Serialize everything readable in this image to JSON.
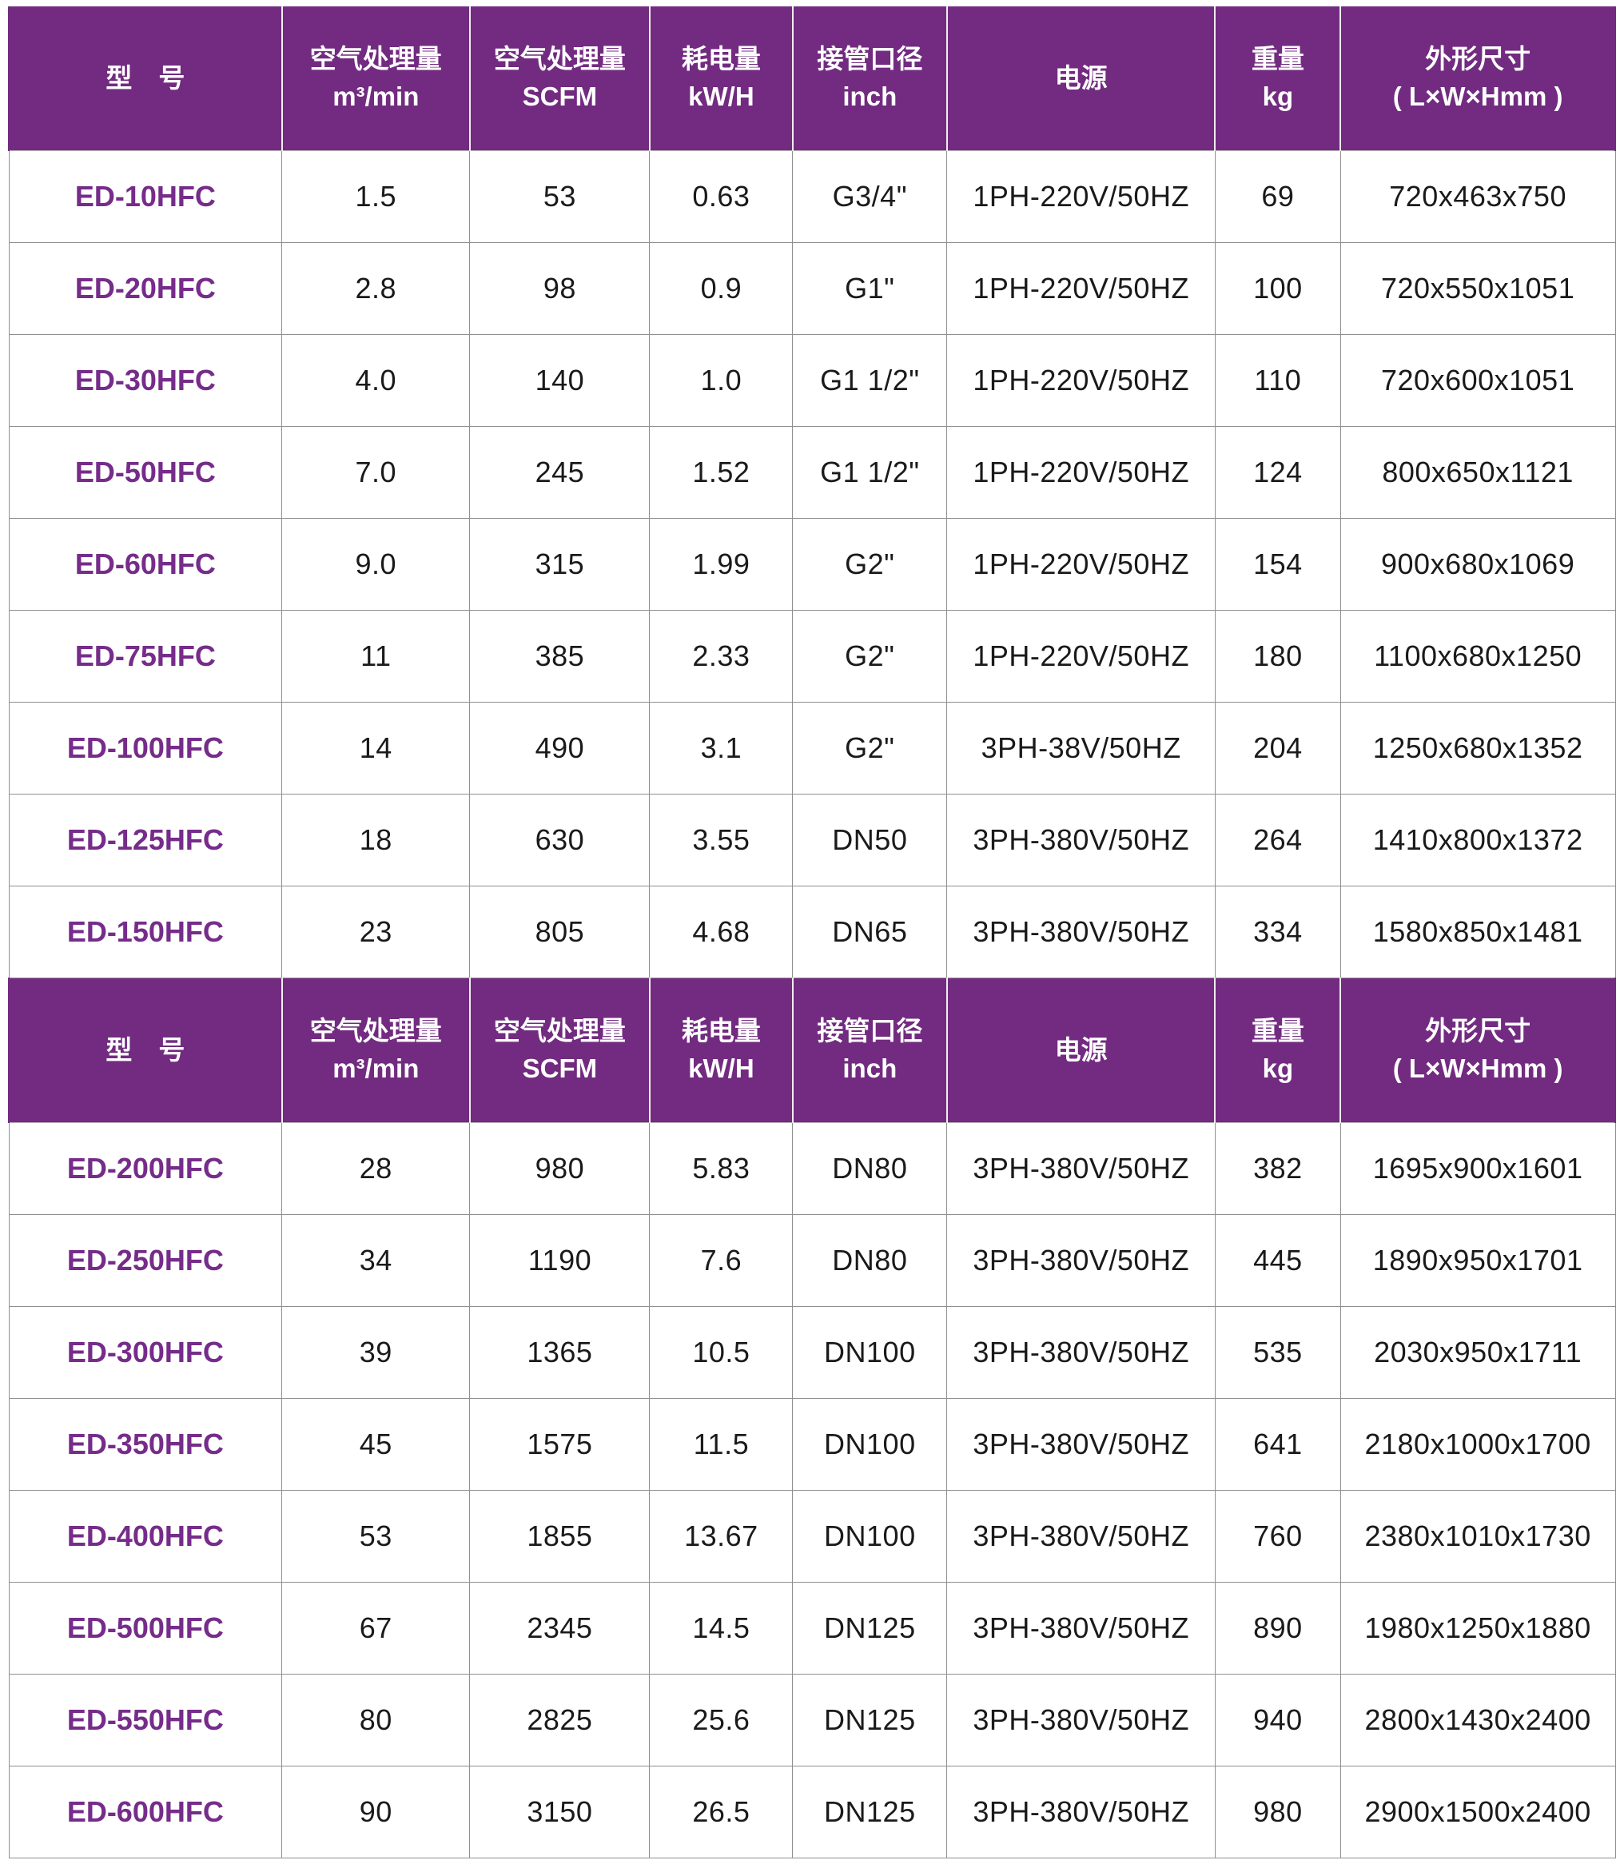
{
  "colors": {
    "header_bg": "#722B80",
    "header_text": "#ffffff",
    "model_text": "#762C8A",
    "body_text": "#1a1a1a",
    "grid_line": "#8f8f8f",
    "header_divider": "#efedee"
  },
  "table": {
    "columns": [
      {
        "name": "model",
        "width_pct": 17.0,
        "lines": [
          "型　号"
        ]
      },
      {
        "name": "air-flow-m3min",
        "width_pct": 11.7,
        "lines": [
          "空气处理量",
          "m³/min"
        ]
      },
      {
        "name": "air-flow-scfm",
        "width_pct": 11.2,
        "lines": [
          "空气处理量",
          "SCFM"
        ]
      },
      {
        "name": "power-consumption",
        "width_pct": 8.9,
        "lines": [
          "耗电量",
          "kW/H"
        ]
      },
      {
        "name": "pipe-diameter",
        "width_pct": 9.6,
        "lines": [
          "接管口径",
          "inch"
        ]
      },
      {
        "name": "power-supply",
        "width_pct": 16.7,
        "lines": [
          "电源"
        ]
      },
      {
        "name": "weight",
        "width_pct": 7.8,
        "lines": [
          "重量",
          "kg"
        ]
      },
      {
        "name": "dimensions",
        "width_pct": 17.1,
        "lines": [
          "外形尺寸",
          "( L×W×Hmm )"
        ]
      }
    ],
    "sections": [
      {
        "rows": [
          [
            "ED-10HFC",
            "1.5",
            "53",
            "0.63",
            "G3/4\"",
            "1PH-220V/50HZ",
            "69",
            "720x463x750"
          ],
          [
            "ED-20HFC",
            "2.8",
            "98",
            "0.9",
            "G1\"",
            "1PH-220V/50HZ",
            "100",
            "720x550x1051"
          ],
          [
            "ED-30HFC",
            "4.0",
            "140",
            "1.0",
            "G1 1/2\"",
            "1PH-220V/50HZ",
            "110",
            "720x600x1051"
          ],
          [
            "ED-50HFC",
            "7.0",
            "245",
            "1.52",
            "G1 1/2\"",
            "1PH-220V/50HZ",
            "124",
            "800x650x1121"
          ],
          [
            "ED-60HFC",
            "9.0",
            "315",
            "1.99",
            "G2\"",
            "1PH-220V/50HZ",
            "154",
            "900x680x1069"
          ],
          [
            "ED-75HFC",
            "11",
            "385",
            "2.33",
            "G2\"",
            "1PH-220V/50HZ",
            "180",
            "1100x680x1250"
          ],
          [
            "ED-100HFC",
            "14",
            "490",
            "3.1",
            "G2\"",
            "3PH-38V/50HZ",
            "204",
            "1250x680x1352"
          ],
          [
            "ED-125HFC",
            "18",
            "630",
            "3.55",
            "DN50",
            "3PH-380V/50HZ",
            "264",
            "1410x800x1372"
          ],
          [
            "ED-150HFC",
            "23",
            "805",
            "4.68",
            "DN65",
            "3PH-380V/50HZ",
            "334",
            "1580x850x1481"
          ]
        ]
      },
      {
        "rows": [
          [
            "ED-200HFC",
            "28",
            "980",
            "5.83",
            "DN80",
            "3PH-380V/50HZ",
            "382",
            "1695x900x1601"
          ],
          [
            "ED-250HFC",
            "34",
            "1190",
            "7.6",
            "DN80",
            "3PH-380V/50HZ",
            "445",
            "1890x950x1701"
          ],
          [
            "ED-300HFC",
            "39",
            "1365",
            "10.5",
            "DN100",
            "3PH-380V/50HZ",
            "535",
            "2030x950x1711"
          ],
          [
            "ED-350HFC",
            "45",
            "1575",
            "11.5",
            "DN100",
            "3PH-380V/50HZ",
            "641",
            "2180x1000x1700"
          ],
          [
            "ED-400HFC",
            "53",
            "1855",
            "13.67",
            "DN100",
            "3PH-380V/50HZ",
            "760",
            "2380x1010x1730"
          ],
          [
            "ED-500HFC",
            "67",
            "2345",
            "14.5",
            "DN125",
            "3PH-380V/50HZ",
            "890",
            "1980x1250x1880"
          ],
          [
            "ED-550HFC",
            "80",
            "2825",
            "25.6",
            "DN125",
            "3PH-380V/50HZ",
            "940",
            "2800x1430x2400"
          ],
          [
            "ED-600HFC",
            "90",
            "3150",
            "26.5",
            "DN125",
            "3PH-380V/50HZ",
            "980",
            "2900x1500x2400"
          ]
        ]
      }
    ]
  }
}
